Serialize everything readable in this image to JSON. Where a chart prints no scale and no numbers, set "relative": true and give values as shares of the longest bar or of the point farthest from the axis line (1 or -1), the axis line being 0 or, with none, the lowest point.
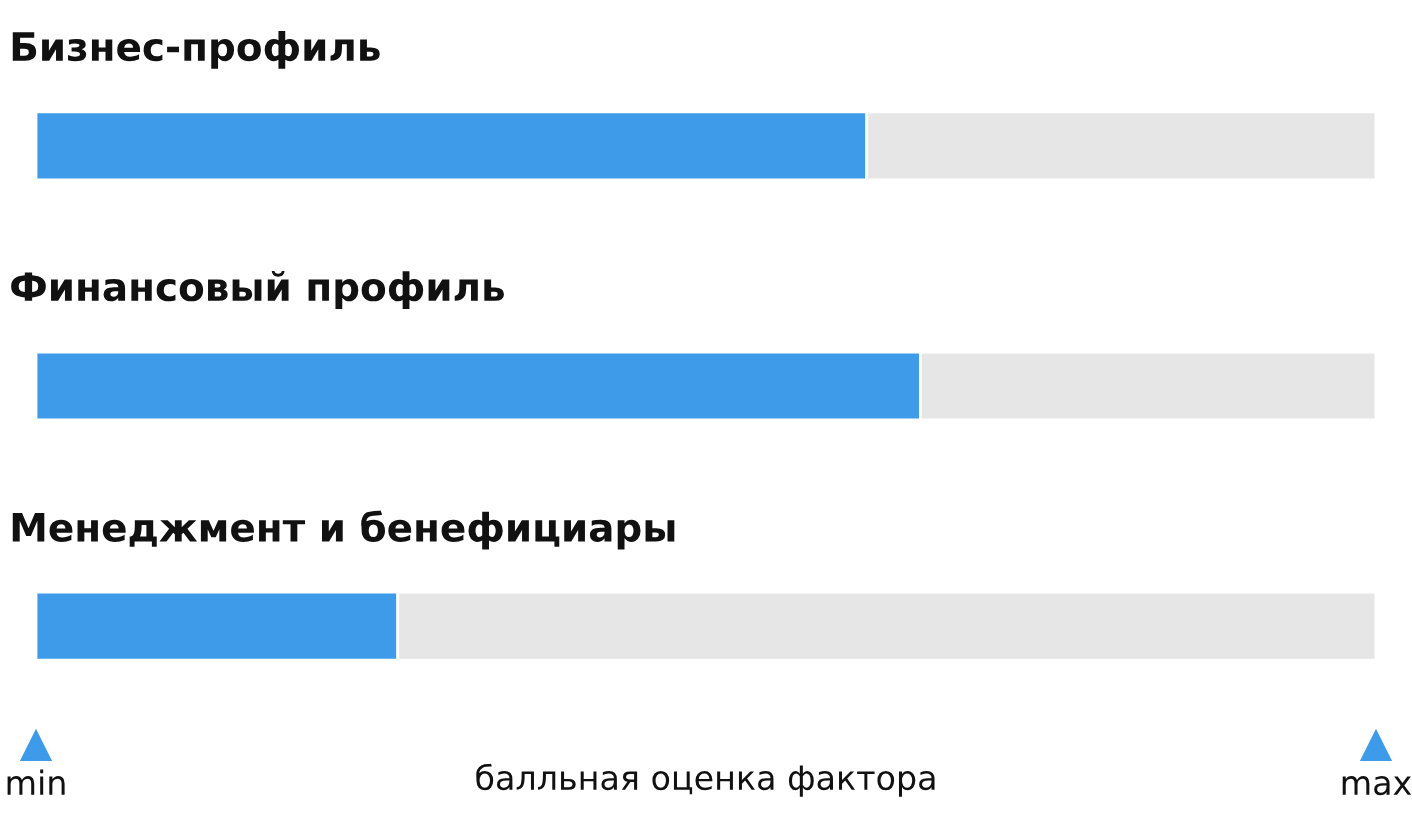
{
  "chart_data": {
    "type": "bar",
    "orientation": "horizontal",
    "stacked": true,
    "relative": true,
    "categories": [
      "Бизнес-профиль",
      "Финансовый профиль",
      "Менеджмент и бенефициары"
    ],
    "series": [
      {
        "color": "#3d9be9",
        "values": [
          0.62,
          0.66,
          0.27
        ]
      },
      {
        "color": "#e6e6e6",
        "values": [
          0.38,
          0.34,
          0.73
        ]
      }
    ],
    "xlabel": "балльная оценка фактора",
    "annotations": [
      "min",
      "max"
    ],
    "legend": false
  }
}
